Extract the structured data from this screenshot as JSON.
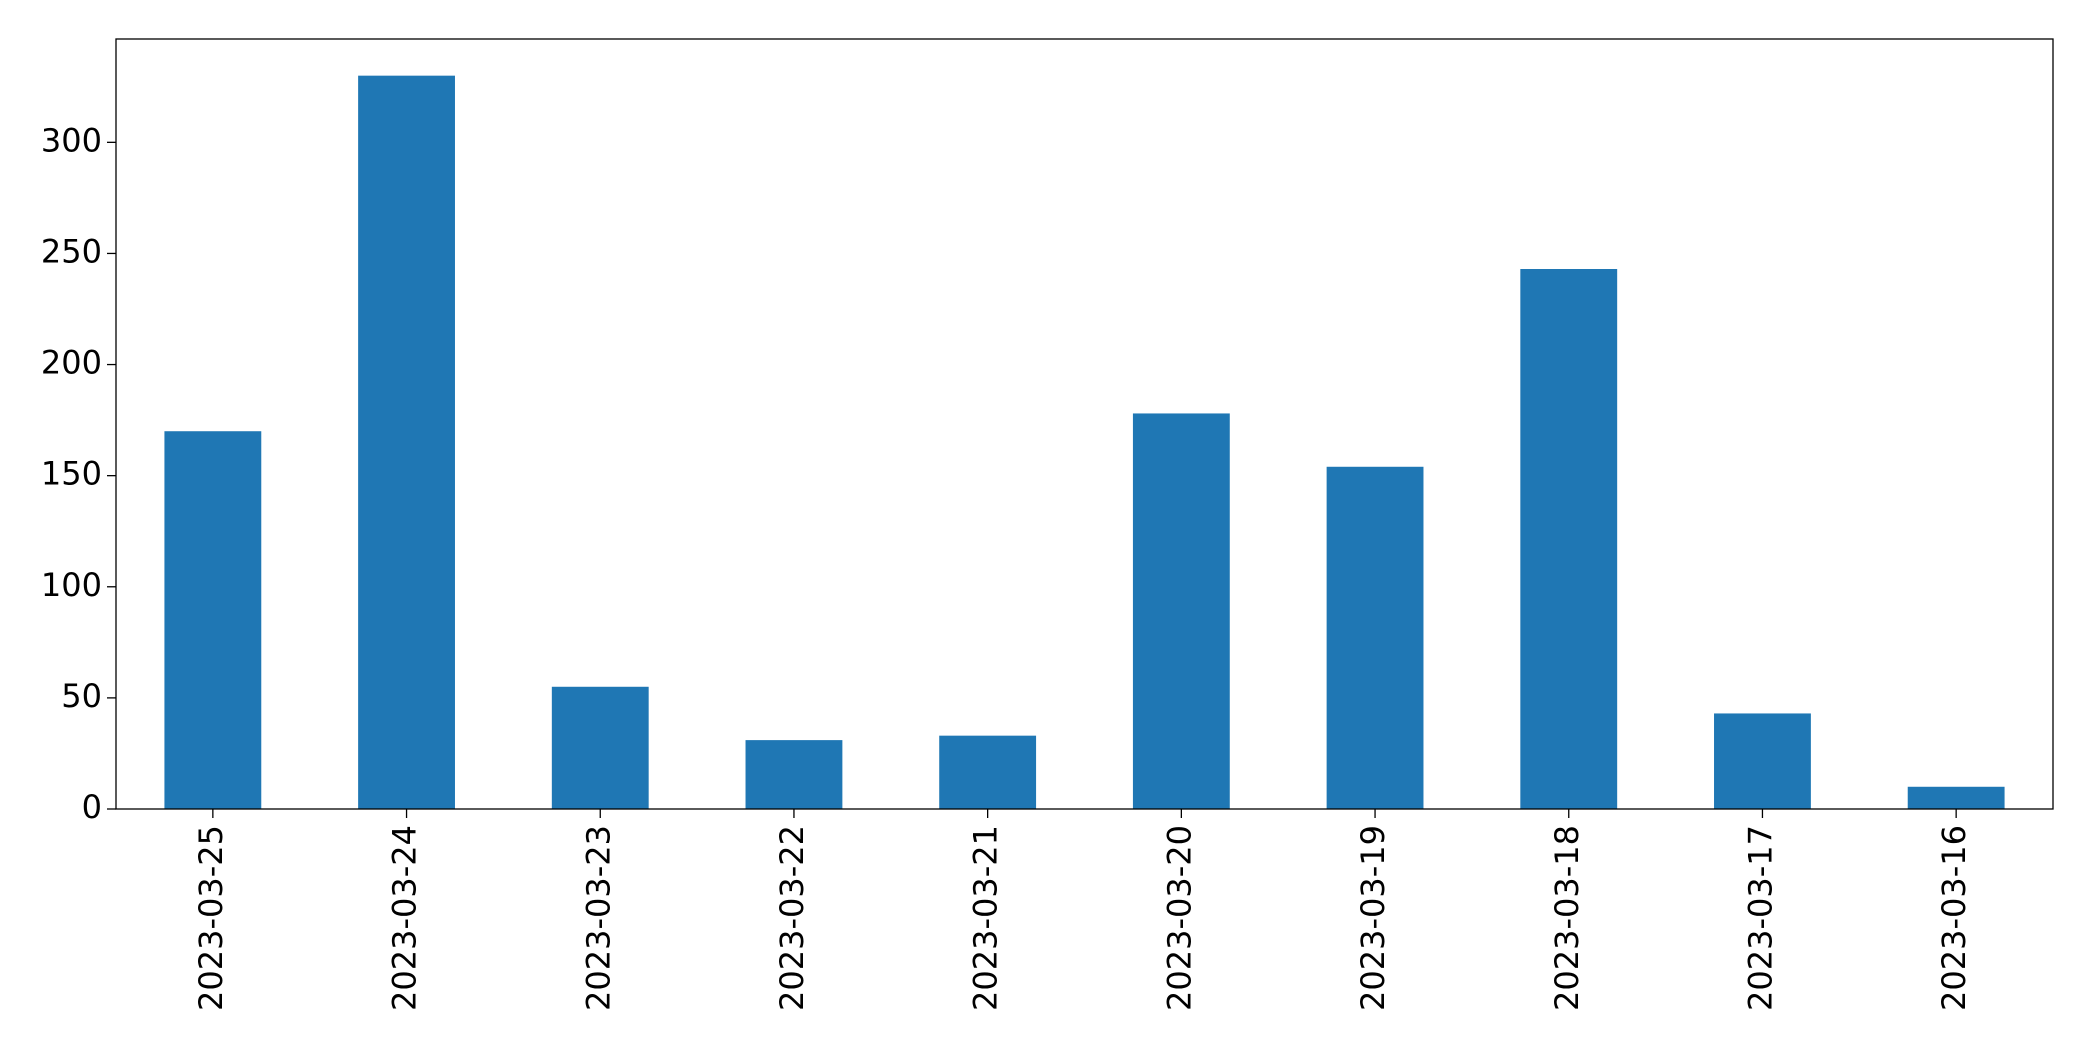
{
  "chart_data": {
    "type": "bar",
    "categories": [
      "2023-03-25",
      "2023-03-24",
      "2023-03-23",
      "2023-03-22",
      "2023-03-21",
      "2023-03-20",
      "2023-03-19",
      "2023-03-18",
      "2023-03-17",
      "2023-03-16"
    ],
    "values": [
      170,
      330,
      55,
      31,
      33,
      178,
      154,
      243,
      43,
      10
    ],
    "color": "#1f77b4",
    "ylim": [
      0,
      346.5
    ],
    "yticks": [
      0,
      50,
      100,
      150,
      200,
      250,
      300
    ],
    "grid": false
  }
}
